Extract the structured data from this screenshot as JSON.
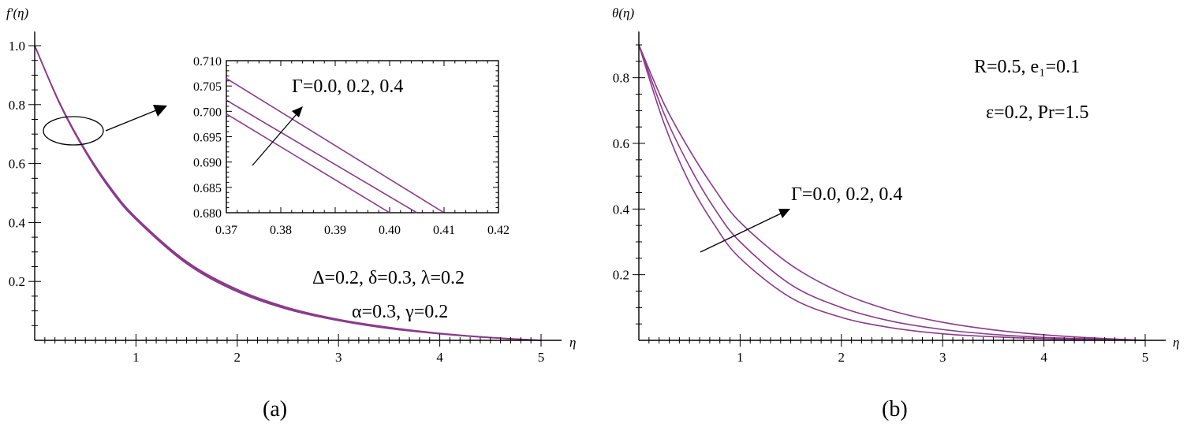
{
  "chart_data": [
    {
      "panel": "a",
      "type": "line",
      "caption": "(a)",
      "ylabel": "f′(η)",
      "xlabel": "η",
      "xlim": [
        0,
        5
      ],
      "ylim": [
        0,
        1.0
      ],
      "x_ticks": [
        "1",
        "2",
        "3",
        "4",
        "5"
      ],
      "y_ticks": [
        "0.2",
        "0.4",
        "0.6",
        "0.8",
        "1.0"
      ],
      "x_tick_values": [
        1,
        2,
        3,
        4,
        5
      ],
      "y_tick_values": [
        0.2,
        0.4,
        0.6,
        0.8,
        1.0
      ],
      "parameter_label": "Γ=0.0, 0.2, 0.4",
      "annotations": [
        "Δ=0.2, δ=0.3, λ=0.2",
        "α=0.3, γ=0.2"
      ],
      "series": [
        {
          "gamma": 0.0,
          "x": [
            0,
            0.25,
            0.5,
            0.75,
            1,
            1.5,
            2,
            2.5,
            3,
            3.5,
            4,
            4.5,
            5
          ],
          "y": [
            1.0,
            0.8,
            0.64,
            0.51,
            0.41,
            0.26,
            0.165,
            0.105,
            0.067,
            0.04,
            0.022,
            0.009,
            0.0
          ]
        },
        {
          "gamma": 0.2,
          "x": [
            0,
            0.25,
            0.5,
            0.75,
            1,
            1.5,
            2,
            2.5,
            3,
            3.5,
            4,
            4.5,
            5
          ],
          "y": [
            1.0,
            0.802,
            0.643,
            0.514,
            0.413,
            0.264,
            0.169,
            0.108,
            0.069,
            0.042,
            0.023,
            0.0095,
            0.0
          ]
        },
        {
          "gamma": 0.4,
          "x": [
            0,
            0.25,
            0.5,
            0.75,
            1,
            1.5,
            2,
            2.5,
            3,
            3.5,
            4,
            4.5,
            5
          ],
          "y": [
            1.0,
            0.804,
            0.646,
            0.518,
            0.417,
            0.268,
            0.173,
            0.111,
            0.071,
            0.044,
            0.024,
            0.01,
            0.0
          ]
        }
      ],
      "inset": {
        "xlim": [
          0.37,
          0.42
        ],
        "ylim": [
          0.68,
          0.71
        ],
        "x_ticks": [
          "0.37",
          "0.38",
          "0.39",
          "0.40",
          "0.41",
          "0.42"
        ],
        "y_ticks": [
          "0.680",
          "0.685",
          "0.690",
          "0.695",
          "0.700",
          "0.705",
          "0.710"
        ],
        "x_tick_values": [
          0.37,
          0.38,
          0.39,
          0.4,
          0.41,
          0.42
        ],
        "y_tick_values": [
          0.68,
          0.685,
          0.69,
          0.695,
          0.7,
          0.705,
          0.71
        ],
        "parameter_label": "Γ=0.0, 0.2, 0.4",
        "series": [
          {
            "gamma": 0.0,
            "x": [
              0.37,
              0.4
            ],
            "y": [
              0.6995,
              0.68
            ]
          },
          {
            "gamma": 0.2,
            "x": [
              0.37,
              0.405
            ],
            "y": [
              0.7022,
              0.68
            ]
          },
          {
            "gamma": 0.4,
            "x": [
              0.37,
              0.41
            ],
            "y": [
              0.7065,
              0.68
            ]
          }
        ]
      }
    },
    {
      "panel": "b",
      "type": "line",
      "caption": "(b)",
      "ylabel": "θ(η)",
      "xlabel": "η",
      "xlim": [
        0,
        5
      ],
      "ylim": [
        0,
        0.9
      ],
      "x_ticks": [
        "1",
        "2",
        "3",
        "4",
        "5"
      ],
      "y_ticks": [
        "0.2",
        "0.4",
        "0.6",
        "0.8"
      ],
      "x_tick_values": [
        1,
        2,
        3,
        4,
        5
      ],
      "y_tick_values": [
        0.2,
        0.4,
        0.6,
        0.8
      ],
      "parameter_label": "Γ=0.0, 0.2, 0.4",
      "annotations": [
        "R=0.5, e₁=0.1",
        "ε=0.2, Pr=1.5"
      ],
      "series": [
        {
          "gamma": 0.0,
          "x": [
            0,
            0.25,
            0.5,
            0.75,
            1,
            1.5,
            2,
            2.5,
            3,
            3.5,
            4,
            4.5,
            5
          ],
          "y": [
            0.9,
            0.66,
            0.48,
            0.35,
            0.25,
            0.13,
            0.07,
            0.038,
            0.02,
            0.011,
            0.005,
            0.002,
            0.0
          ]
        },
        {
          "gamma": 0.2,
          "x": [
            0,
            0.25,
            0.5,
            0.75,
            1,
            1.5,
            2,
            2.5,
            3,
            3.5,
            4,
            4.5,
            5
          ],
          "y": [
            0.9,
            0.69,
            0.53,
            0.4,
            0.3,
            0.17,
            0.1,
            0.058,
            0.033,
            0.018,
            0.009,
            0.004,
            0.0
          ]
        },
        {
          "gamma": 0.4,
          "x": [
            0,
            0.25,
            0.5,
            0.75,
            1,
            1.5,
            2,
            2.5,
            3,
            3.5,
            4,
            4.5,
            5
          ],
          "y": [
            0.9,
            0.72,
            0.58,
            0.46,
            0.36,
            0.23,
            0.145,
            0.09,
            0.055,
            0.032,
            0.017,
            0.007,
            0.0
          ]
        }
      ]
    }
  ],
  "colors": {
    "curve": "#8b3a8b",
    "axis": "#000000"
  }
}
